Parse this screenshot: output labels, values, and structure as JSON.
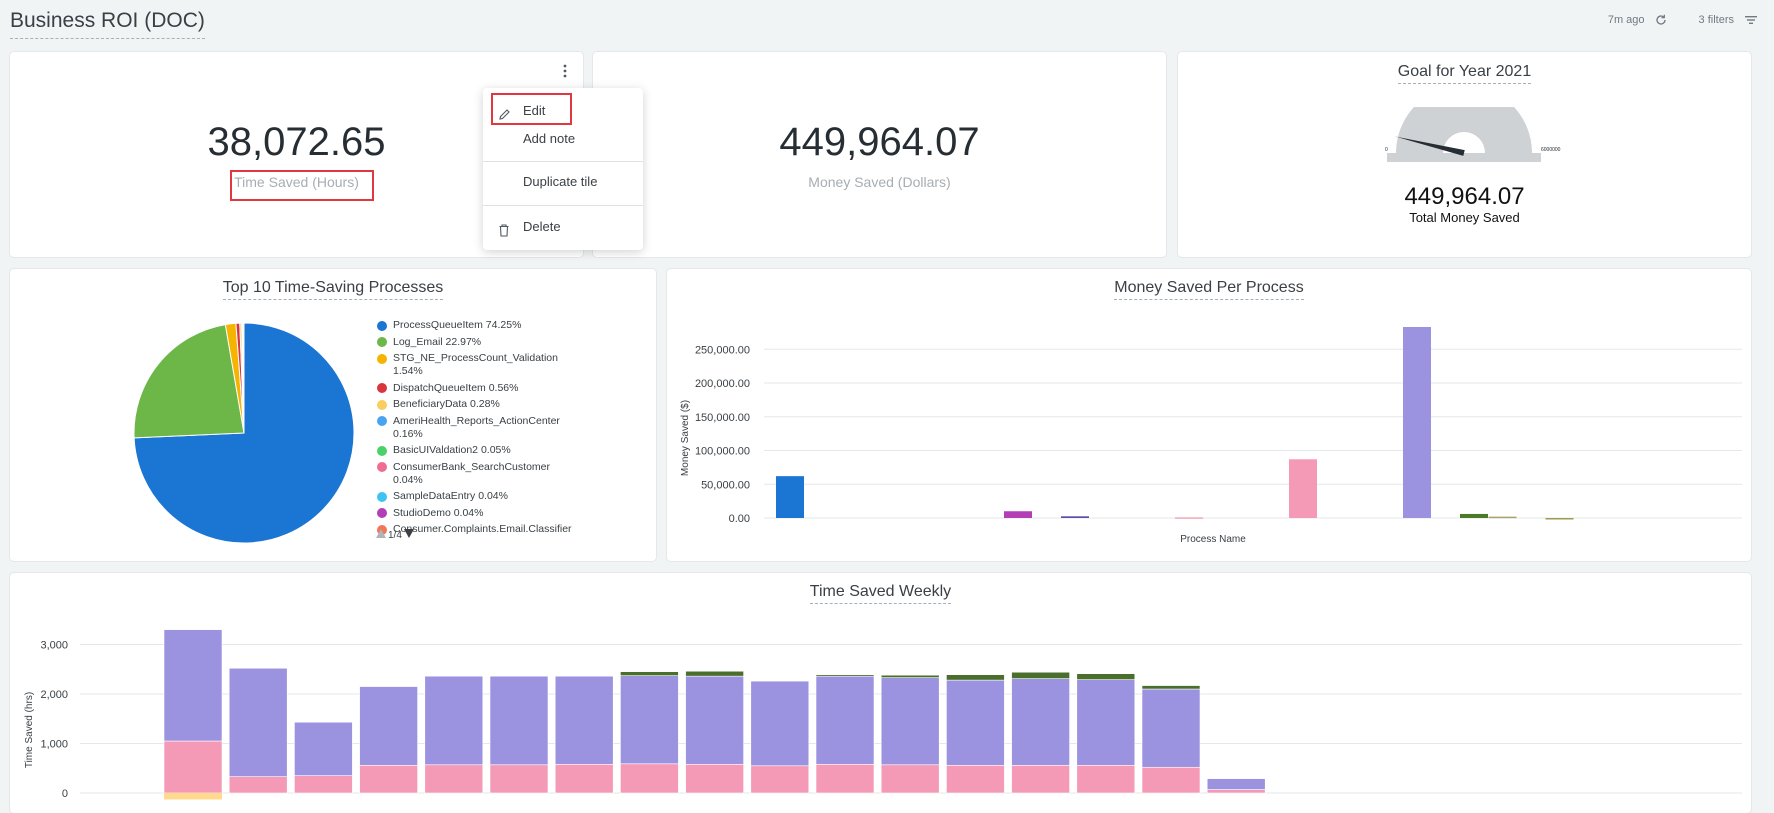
{
  "header": {
    "title": "Business ROI (DOC)",
    "updated": "7m ago",
    "filters": "3 filters"
  },
  "tiles": {
    "time_saved": {
      "value": "38,072.65",
      "label": "Time Saved (Hours)"
    },
    "money_saved": {
      "value": "449,964.07",
      "label": "Money Saved (Dollars)"
    },
    "goal": {
      "title": "Goal for Year 2021",
      "value": "449,964.07",
      "label": "Total Money Saved",
      "min_label": "0",
      "max_label": "6000000",
      "fraction": 0.075
    }
  },
  "context_menu": {
    "edit": "Edit",
    "add_note": "Add note",
    "duplicate": "Duplicate tile",
    "delete": "Delete"
  },
  "pie": {
    "title": "Top 10 Time-Saving Processes",
    "pager": "1/4",
    "legend": [
      {
        "label": "ProcessQueueItem 74.25%",
        "color": "#1b75d3"
      },
      {
        "label": "Log_Email 22.97%",
        "color": "#6db648"
      },
      {
        "label": "STG_NE_ProcessCount_Validation 1.54%",
        "color": "#f4b400"
      },
      {
        "label": "DispatchQueueItem 0.56%",
        "color": "#d7363e"
      },
      {
        "label": "BeneficiaryData 0.28%",
        "color": "#f9cd5e"
      },
      {
        "label": "AmeriHealth_Reports_ActionCenter 0.16%",
        "color": "#4aa3f0"
      },
      {
        "label": "BasicUIValdation2 0.05%",
        "color": "#4cd06a"
      },
      {
        "label": "ConsumerBank_SearchCustomer 0.04%",
        "color": "#ef6d92"
      },
      {
        "label": "SampleDataEntry 0.04%",
        "color": "#3fc3f0"
      },
      {
        "label": "StudioDemo 0.04%",
        "color": "#b23fb5"
      },
      {
        "label": "Consumer.Complaints.Email.Classifier",
        "color": "#f2765a"
      }
    ]
  },
  "chart_data": [
    {
      "type": "pie",
      "title": "Top 10 Time-Saving Processes",
      "labels": [
        "ProcessQueueItem",
        "Log_Email",
        "STG_NE_ProcessCount_Validation",
        "DispatchQueueItem",
        "BeneficiaryData",
        "AmeriHealth_Reports_ActionCenter",
        "BasicUIValdation2",
        "ConsumerBank_SearchCustomer",
        "SampleDataEntry",
        "StudioDemo"
      ],
      "values": [
        74.25,
        22.97,
        1.54,
        0.56,
        0.28,
        0.16,
        0.05,
        0.04,
        0.04,
        0.04
      ],
      "colors": [
        "#1b75d3",
        "#6db648",
        "#f4b400",
        "#d7363e",
        "#f9cd5e",
        "#4aa3f0",
        "#4cd06a",
        "#ef6d92",
        "#3fc3f0",
        "#b23fb5"
      ]
    },
    {
      "type": "bar",
      "title": "Money Saved Per Process",
      "xlabel": "Process Name",
      "ylabel": "Money Saved ($)",
      "ylim": [
        0,
        280000
      ],
      "yticks": [
        "0.00",
        "50,000.00",
        "100,000.00",
        "150,000.00",
        "200,000.00",
        "250,000.00"
      ],
      "yticks_values": [
        0,
        50000,
        100000,
        150000,
        200000,
        250000
      ],
      "n_slots": 15,
      "bars": [
        {
          "slot": 0,
          "value": 62000,
          "color": "#1b75d3"
        },
        {
          "slot": 4,
          "value": 10000,
          "color": "#b23fb5"
        },
        {
          "slot": 5,
          "value": 2500,
          "color": "#5a4fa8"
        },
        {
          "slot": 7,
          "value": 1000,
          "color": "#f2a7b7"
        },
        {
          "slot": 9,
          "value": 87000,
          "color": "#f49ab7"
        },
        {
          "slot": 11,
          "value": 283000,
          "color": "#9b92e0"
        },
        {
          "slot": 12,
          "value": 6000,
          "color": "#4a7a2a"
        },
        {
          "slot": 12.5,
          "value": 2000,
          "color": "#a9a36a"
        },
        {
          "slot": 13.5,
          "value": -2000,
          "color": "#a19a52"
        }
      ]
    },
    {
      "type": "bar",
      "stacked": true,
      "title": "Time Saved Weekly",
      "ylabel": "Time Saved (hrs)",
      "ylim": [
        -150,
        3500
      ],
      "yticks": [
        "0",
        "1,000",
        "2,000",
        "3,000"
      ],
      "yticks_values": [
        0,
        1000,
        2000,
        3000
      ],
      "series": [
        {
          "name": "",
          "color": "#f49ab7",
          "values": [
            1050,
            330,
            350,
            560,
            570,
            570,
            580,
            590,
            580,
            550,
            580,
            570,
            560,
            560,
            560,
            520,
            70
          ]
        },
        {
          "name": "",
          "color": "#9b92e0",
          "values": [
            2250,
            2190,
            1080,
            1590,
            1790,
            1790,
            1780,
            1780,
            1780,
            1710,
            1780,
            1760,
            1720,
            1750,
            1730,
            1580,
            220
          ]
        },
        {
          "name": "",
          "color": "#4a6f2c",
          "values": [
            0,
            0,
            0,
            0,
            0,
            0,
            0,
            80,
            100,
            0,
            30,
            50,
            110,
            130,
            120,
            70,
            0
          ]
        },
        {
          "name": "",
          "color": "#ffd98c",
          "values": [
            -130,
            0,
            0,
            0,
            0,
            0,
            0,
            0,
            0,
            0,
            0,
            0,
            0,
            0,
            0,
            0,
            0
          ]
        }
      ]
    }
  ]
}
